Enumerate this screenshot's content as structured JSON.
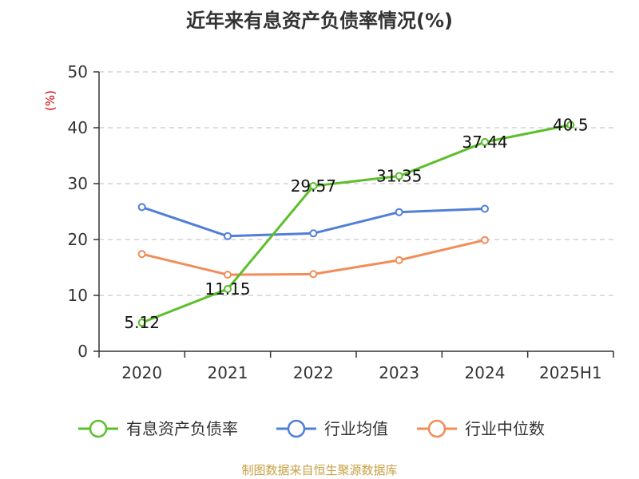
{
  "title": "近年来有息资产负债率情况(%)",
  "source": "制图数据来自恒生聚源数据库",
  "chart_data": {
    "type": "line",
    "title": "近年来有息资产负债率情况(%)",
    "ylabel": "(%)",
    "xlabel": "",
    "categories": [
      "2020",
      "2021",
      "2022",
      "2023",
      "2024",
      "2025H1"
    ],
    "ylim": [
      0,
      50
    ],
    "yticks": [
      0,
      10,
      20,
      30,
      40,
      50
    ],
    "grid": true,
    "legend_position": "bottom",
    "series": [
      {
        "name": "有息资产负债率",
        "color": "#5cbf2a",
        "values": [
          5.12,
          11.15,
          29.57,
          31.35,
          37.44,
          40.5
        ],
        "labels": [
          "5.12",
          "11.15",
          "29.57",
          "31.35",
          "37.44",
          "40.5"
        ]
      },
      {
        "name": "行业均值",
        "color": "#4f7fd8",
        "values": [
          25.8,
          20.6,
          21.1,
          24.9,
          25.5,
          null
        ]
      },
      {
        "name": "行业中位数",
        "color": "#f28c58",
        "values": [
          17.4,
          13.7,
          13.8,
          16.3,
          19.9,
          null
        ]
      }
    ]
  }
}
